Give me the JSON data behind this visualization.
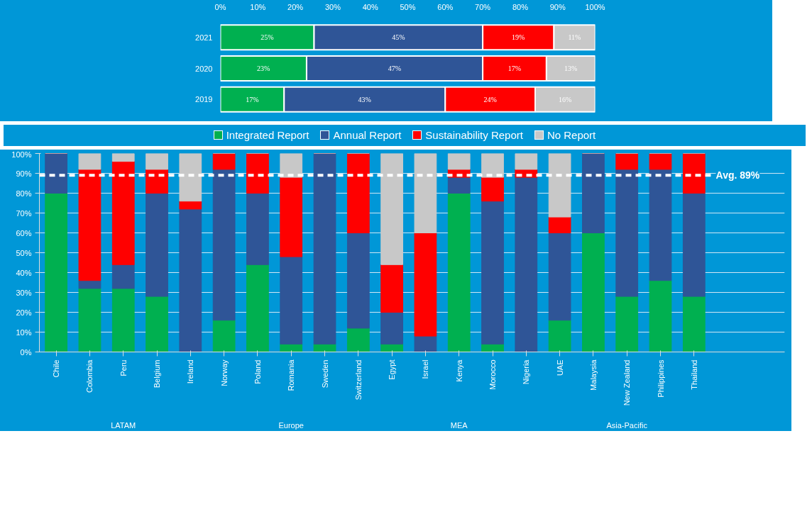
{
  "chart_data": [
    {
      "type": "bar",
      "orientation": "horizontal",
      "stacked": true,
      "categories": [
        "2021",
        "2020",
        "2019"
      ],
      "series": [
        {
          "color": "#00b050",
          "values": [
            25,
            23,
            17
          ],
          "value_labels": [
            "25%",
            "23%",
            "17%"
          ]
        },
        {
          "color": "#2f5597",
          "values": [
            45,
            47,
            43
          ],
          "value_labels": [
            "45%",
            "47%",
            "43%"
          ]
        },
        {
          "color": "#ff0000",
          "values": [
            19,
            17,
            24
          ],
          "value_labels": [
            "19%",
            "17%",
            "24%"
          ]
        },
        {
          "color": "#c8c8c8",
          "values": [
            11,
            13,
            16
          ],
          "value_labels": [
            "11%",
            "13%",
            "16%"
          ]
        }
      ],
      "xlim": [
        0,
        100
      ],
      "xticks": [
        {
          "value": 0,
          "label": "0%"
        },
        {
          "value": 10,
          "label": "10%"
        },
        {
          "value": 20,
          "label": "20%"
        },
        {
          "value": 30,
          "label": "30%"
        },
        {
          "value": 40,
          "label": "40%"
        },
        {
          "value": 50,
          "label": "50%"
        },
        {
          "value": 60,
          "label": "60%"
        },
        {
          "value": 70,
          "label": "70%"
        },
        {
          "value": 80,
          "label": "80%"
        },
        {
          "value": 90,
          "label": "90%"
        },
        {
          "value": 100,
          "label": "100%"
        }
      ],
      "grid": false
    },
    {
      "type": "bar",
      "stacked": true,
      "categories": [
        "Chile",
        "Colombia",
        "Peru",
        "Belgium",
        "Ireland",
        "Norway",
        "Poland",
        "Romania",
        "Sweden",
        "Switzerland",
        "Egypt",
        "Israel",
        "Kenya",
        "Morocco",
        "Nigeria",
        "UAE",
        "Malaysia",
        "New Zealand",
        "Philippines",
        "Thailand"
      ],
      "series": [
        {
          "name": "Integrated Report",
          "color": "#00b050",
          "values": [
            80,
            32,
            32,
            28,
            0,
            16,
            44,
            4,
            4,
            12,
            4,
            0,
            80,
            4,
            0,
            16,
            60,
            28,
            36,
            28
          ]
        },
        {
          "name": "Annual Report",
          "color": "#2f5597",
          "values": [
            20,
            4,
            12,
            52,
            72,
            76,
            36,
            44,
            96,
            48,
            16,
            8,
            8,
            72,
            88,
            44,
            40,
            64,
            56,
            52
          ]
        },
        {
          "name": "Sustainability Report",
          "color": "#ff0000",
          "values": [
            0,
            56,
            52,
            12,
            4,
            8,
            20,
            40,
            0,
            40,
            24,
            52,
            4,
            12,
            4,
            8,
            0,
            8,
            8,
            20
          ]
        },
        {
          "name": "No Report",
          "color": "#c8c8c8",
          "values": [
            0,
            8,
            4,
            8,
            24,
            0,
            0,
            12,
            0,
            0,
            56,
            40,
            8,
            12,
            8,
            32,
            0,
            0,
            0,
            0
          ]
        }
      ],
      "ylim": [
        0,
        100
      ],
      "yticks": [
        {
          "value": 0,
          "label": "0%"
        },
        {
          "value": 10,
          "label": "10%"
        },
        {
          "value": 20,
          "label": "20%"
        },
        {
          "value": 30,
          "label": "30%"
        },
        {
          "value": 40,
          "label": "40%"
        },
        {
          "value": 50,
          "label": "50%"
        },
        {
          "value": 60,
          "label": "60%"
        },
        {
          "value": 70,
          "label": "70%"
        },
        {
          "value": 80,
          "label": "80%"
        },
        {
          "value": 90,
          "label": "90%"
        },
        {
          "value": 100,
          "label": "100%"
        }
      ],
      "grid": "y",
      "legend": "top",
      "ref_lines": [
        {
          "axis": "y",
          "value": 89,
          "label": "Avg. 89%",
          "color": "#ffffff",
          "line_style": "dashed"
        }
      ],
      "annotations": [
        "LATAM",
        "Europe",
        "MEA",
        "Asia-Pacific"
      ]
    }
  ]
}
